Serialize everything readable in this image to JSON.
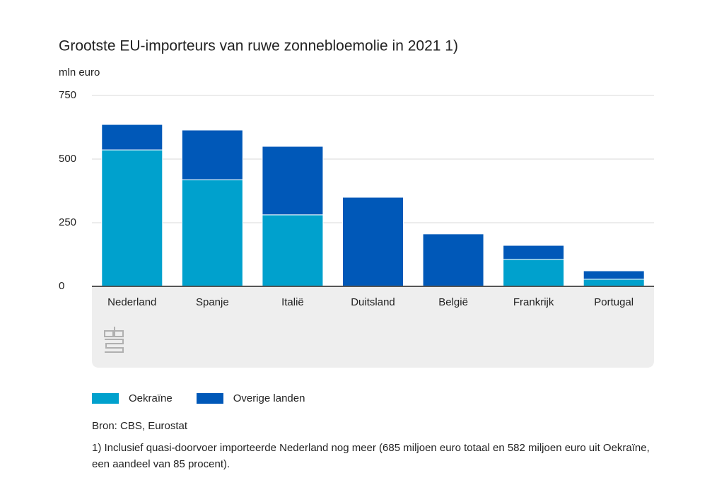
{
  "chart_data": {
    "type": "stacked_bar",
    "title": "Grootste EU-importeurs van ruwe zonnebloemolie in 2021 1)",
    "y_label": "mln euro",
    "categories": [
      "Nederland",
      "Spanje",
      "Italië",
      "Duitsland",
      "België",
      "Frankrijk",
      "Portugal"
    ],
    "series": [
      {
        "name": "Oekraïne",
        "color": "#00a1cd",
        "values": [
          536,
          419,
          281,
          0,
          0,
          106,
          28
        ]
      },
      {
        "name": "Overige landen",
        "color": "#0058b8",
        "values": [
          100,
          195,
          269,
          350,
          206,
          55,
          33
        ]
      }
    ],
    "ylim": [
      0,
      750
    ],
    "yticks": [
      0,
      250,
      500,
      750
    ],
    "grid": true,
    "source": "Bron: CBS, Eurostat",
    "footnote": "1) Inclusief quasi-doorvoer importeerde Nederland nog meer (685 miljoen euro totaal en 582 miljoen euro uit Oekraïne, een aandeel van 85 procent)."
  }
}
